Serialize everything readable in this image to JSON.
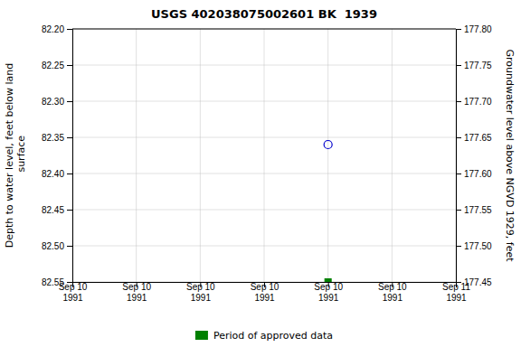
{
  "chart_data": {
    "type": "scatter",
    "title": "USGS 402038075002601 BK  1939",
    "y_label": "Depth to water level, feet below land\n surface",
    "y2_label": "Groundwater level above NGVD 1929, feet",
    "categories": [
      "Sep 10\n1991",
      "Sep 10\n1991",
      "Sep 10\n1991",
      "Sep 10\n1991",
      "Sep 10\n1991",
      "Sep 10\n1991",
      "Sep 11\n1991"
    ],
    "series": [
      {
        "color": "#0000cc",
        "marker": "open-circle",
        "values": [
          null,
          null,
          null,
          null,
          82.36,
          null,
          null
        ]
      },
      {
        "name": "Period of approved data",
        "color": "#008000",
        "marker": "square",
        "values": [
          null,
          null,
          null,
          null,
          82.55,
          null,
          null
        ]
      }
    ],
    "ylim": [
      82.55,
      82.2
    ],
    "yticks": [
      {
        "value": 82.2,
        "label": "82.20"
      },
      82.25,
      {
        "value": 82.3,
        "label": "82.30"
      },
      82.35,
      {
        "value": 82.4,
        "label": "82.40"
      },
      82.45,
      {
        "value": 82.5,
        "label": "82.50"
      },
      82.55
    ],
    "y2lim": [
      177.45,
      177.8
    ],
    "y2ticks": [
      {
        "value": 177.8,
        "label": "177.80"
      },
      177.75,
      {
        "value": 177.7,
        "label": "177.70"
      },
      177.65,
      {
        "value": 177.6,
        "label": "177.60"
      },
      177.55,
      {
        "value": 177.5,
        "label": "177.50"
      },
      177.45
    ],
    "grid": true,
    "legend": "bottom"
  }
}
